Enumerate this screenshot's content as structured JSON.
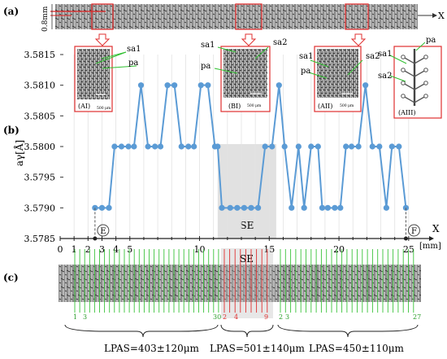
{
  "panels": {
    "a": "(a)",
    "b": "(b)",
    "c": "(c)"
  },
  "strip_scale_label": "0.8mm",
  "x_axis_letter": "X",
  "insets": {
    "AI": {
      "label": "(AI)",
      "scale": "500 μm",
      "arrows": [
        "sa1",
        "pa"
      ]
    },
    "BI": {
      "label": "(BI)",
      "scale": "500 μm",
      "arrows": [
        "sa1",
        "sa2",
        "pa"
      ]
    },
    "AII": {
      "label": "(AII)",
      "scale": "500 μm",
      "arrows": [
        "sa1",
        "pa",
        "sa2"
      ]
    },
    "AIII": {
      "label": "(AIII)",
      "arrows": [
        "pa",
        "sa1",
        "sa2"
      ]
    }
  },
  "chart_data": {
    "type": "line",
    "ylabel": "aγ[Å]",
    "xlabel": "X",
    "xunit": "[mm]",
    "ylim": [
      3.5785,
      3.5815
    ],
    "xlim": [
      0,
      26
    ],
    "y_ticks": [
      3.5785,
      3.579,
      3.5795,
      3.58,
      3.5805,
      3.581,
      3.5815
    ],
    "x_ticks": [
      0,
      1,
      2,
      3,
      4,
      5,
      10,
      15,
      20,
      25
    ],
    "minor_x_ticks": [
      6,
      7,
      8,
      9,
      11,
      12,
      13,
      14,
      16,
      17,
      18,
      19,
      21,
      22,
      23,
      24
    ],
    "color": "#5b9bd5",
    "series": [
      {
        "x": [
          2.5,
          3.0,
          3.5,
          3.9,
          4.4,
          4.9,
          5.3,
          5.8,
          6.3,
          6.8,
          7.2,
          7.7,
          8.2,
          8.7,
          9.2,
          9.6,
          10.1,
          10.6,
          11.1,
          11.3,
          11.6,
          12.2,
          12.7,
          13.2,
          13.7,
          14.2,
          14.7,
          15.2,
          15.7,
          16.1,
          16.6,
          17.1,
          17.5,
          18.0,
          18.5,
          18.8,
          19.2,
          19.7,
          20.1,
          20.5,
          20.9,
          21.4,
          21.9,
          22.4,
          22.9,
          23.4,
          23.8,
          24.3,
          24.8
        ],
        "y": [
          3.579,
          3.579,
          3.579,
          3.58,
          3.58,
          3.58,
          3.58,
          3.581,
          3.58,
          3.58,
          3.58,
          3.581,
          3.581,
          3.58,
          3.58,
          3.58,
          3.581,
          3.581,
          3.58,
          3.58,
          3.579,
          3.579,
          3.579,
          3.579,
          3.579,
          3.579,
          3.58,
          3.58,
          3.581,
          3.58,
          3.579,
          3.58,
          3.579,
          3.58,
          3.58,
          3.579,
          3.579,
          3.579,
          3.579,
          3.58,
          3.58,
          3.58,
          3.581,
          3.58,
          3.58,
          3.579,
          3.58,
          3.58,
          3.579
        ]
      }
    ],
    "region": {
      "from": 11.3,
      "to": 15.5,
      "label": "SE"
    },
    "markers": [
      {
        "label": "E",
        "x": 2.5
      },
      {
        "label": "F",
        "x": 24.8
      }
    ]
  },
  "strip_c": {
    "left_labels": [
      "1",
      "3",
      "30"
    ],
    "mid_labels": [
      "2",
      "4",
      "9"
    ],
    "right_labels": [
      "2",
      "3",
      "27"
    ],
    "se_label": "SE"
  },
  "lpas": [
    {
      "text": "LPAS=403±120μm"
    },
    {
      "text": "LPAS=501±140μm"
    },
    {
      "text": "LPAS=450±110μm"
    }
  ]
}
